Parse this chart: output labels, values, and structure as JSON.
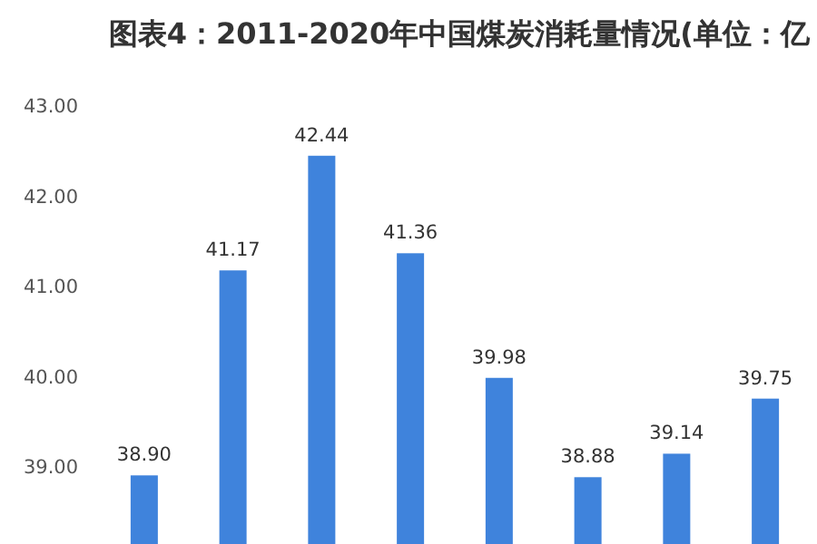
{
  "chart_data": {
    "type": "bar",
    "title": "图表4：2011-2020年中国煤炭消耗量情况(单位：亿",
    "categories": [
      null,
      null,
      null,
      null,
      null,
      null,
      null,
      null
    ],
    "values": [
      38.9,
      41.17,
      42.44,
      41.36,
      39.98,
      38.88,
      39.14,
      39.75
    ],
    "value_labels": [
      "38.90",
      "41.17",
      "42.44",
      "41.36",
      "39.98",
      "38.88",
      "39.14",
      "39.75"
    ],
    "color": "#3f83dc",
    "ylim": [
      38.14,
      43
    ],
    "yticks": [
      {
        "value": 39,
        "label": "39.00"
      },
      {
        "value": 40,
        "label": "40.00"
      },
      {
        "value": 41,
        "label": "41.00"
      },
      {
        "value": 42,
        "label": "42.00"
      },
      {
        "value": 43,
        "label": "43.00"
      }
    ]
  }
}
